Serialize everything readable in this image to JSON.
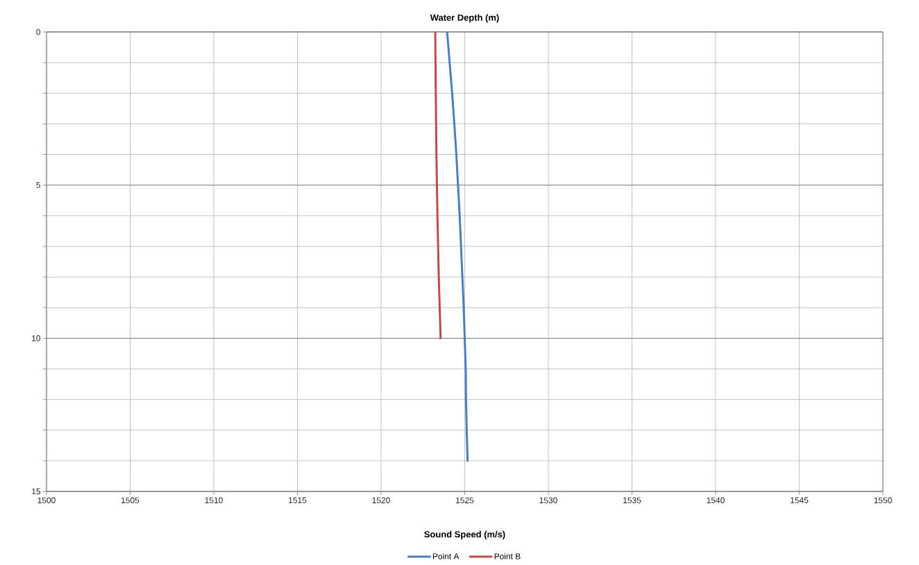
{
  "chart_data": {
    "type": "line",
    "title": "Water Depth (m)",
    "xlabel": "Sound Speed (m/s)",
    "xlim": [
      1500,
      1550
    ],
    "xticks": [
      1500,
      1505,
      1510,
      1515,
      1520,
      1525,
      1530,
      1535,
      1540,
      1545,
      1550
    ],
    "ylim": [
      15,
      0
    ],
    "yticks": [
      0,
      {
        "value": 1,
        "label": null
      },
      {
        "value": 2,
        "label": null
      },
      {
        "value": 3,
        "label": null
      },
      {
        "value": 4,
        "label": null
      },
      5,
      {
        "value": 6,
        "label": null
      },
      {
        "value": 7,
        "label": null
      },
      {
        "value": 8,
        "label": null
      },
      {
        "value": 9,
        "label": null
      },
      10,
      {
        "value": 11,
        "label": null
      },
      {
        "value": 12,
        "label": null
      },
      {
        "value": 13,
        "label": null
      },
      {
        "value": 14,
        "label": null
      },
      15
    ],
    "grid": true,
    "legend": "bottom",
    "marker": "none",
    "line_style": "solid",
    "series": [
      {
        "name": "Point A",
        "color": "#4a7ebb",
        "x": [
          1523.95,
          1524.1,
          1524.25,
          1524.38,
          1524.5,
          1524.6,
          1524.7,
          1524.78,
          1524.86,
          1524.94,
          1525.0,
          1525.06,
          1525.08,
          1525.12,
          1525.17
        ],
        "values": [
          0,
          1,
          2,
          3,
          4,
          5,
          6,
          7,
          8,
          9,
          10,
          11,
          12,
          13,
          14
        ]
      },
      {
        "name": "Point B",
        "color": "#be4b48",
        "x": [
          1523.24,
          1523.27,
          1523.31,
          1523.37,
          1523.45,
          1523.56
        ],
        "values": [
          0,
          2,
          4,
          6,
          8,
          10
        ]
      }
    ]
  }
}
